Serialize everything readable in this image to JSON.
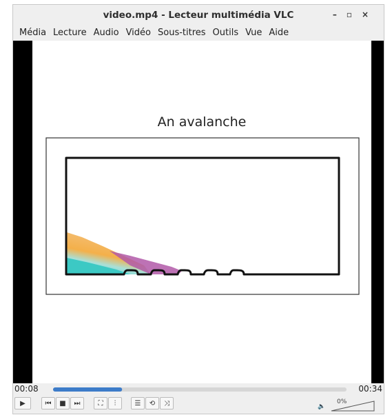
{
  "window": {
    "title": "video.mp4 - Lecteur multimédia VLC"
  },
  "menu": [
    "Média",
    "Lecture",
    "Audio",
    "Vidéo",
    "Sous-titres",
    "Outils",
    "Vue",
    "Aide"
  ],
  "video": {
    "title": "An avalanche"
  },
  "controls": {
    "elapsed": "00:08",
    "duration": "00:34",
    "volume": "0%"
  }
}
